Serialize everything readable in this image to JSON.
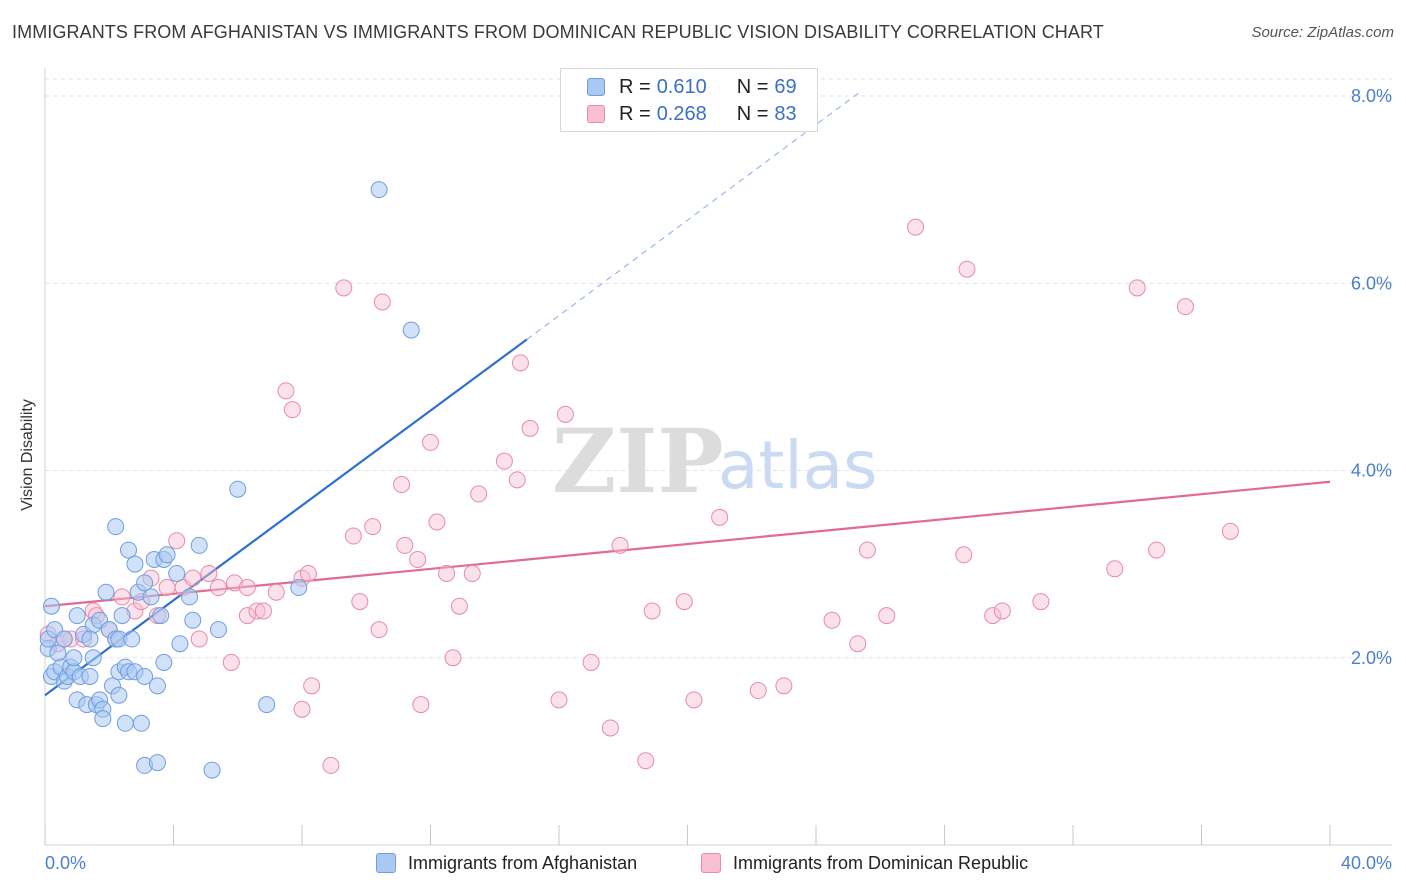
{
  "title": "IMMIGRANTS FROM AFGHANISTAN VS IMMIGRANTS FROM DOMINICAN REPUBLIC VISION DISABILITY CORRELATION CHART",
  "source": "Source: ZipAtlas.com",
  "watermark": {
    "zip": "ZIP",
    "atlas": "atlas"
  },
  "legend_top": [
    {
      "r_label": "R =",
      "r_value": "0.610",
      "n_label": "N =",
      "n_value": "69",
      "color": "#a9c8f2",
      "border": "#6f9ee0"
    },
    {
      "r_label": "R =",
      "r_value": "0.268",
      "n_label": "N =",
      "n_value": "83",
      "color": "#f7bfd1",
      "border": "#e88aa9"
    }
  ],
  "legend_bottom": [
    {
      "label": "Immigrants from Afghanistan",
      "color": "#a9c8f2",
      "border": "#6f9ee0"
    },
    {
      "label": "Immigrants from Dominican Republic",
      "color": "#f7bfd1",
      "border": "#e88aa9"
    }
  ],
  "chart_data": {
    "type": "scatter",
    "title": "IMMIGRANTS FROM AFGHANISTAN VS IMMIGRANTS FROM DOMINICAN REPUBLIC VISION DISABILITY CORRELATION CHART",
    "xlabel": "",
    "ylabel": "Vision Disability",
    "xlim": [
      0,
      40
    ],
    "ylim": [
      0,
      8.0
    ],
    "x_tick_labels": [
      "0.0%",
      "40.0%"
    ],
    "y_ticks": [
      2.0,
      4.0,
      6.0,
      8.0
    ],
    "y_tick_labels": [
      "2.0%",
      "4.0%",
      "6.0%",
      "8.0%"
    ],
    "grid": true,
    "colors": {
      "afghanistan": "#2f6fd0",
      "dominican": "#e26a95"
    },
    "series": [
      {
        "name": "Immigrants from Afghanistan",
        "trend": {
          "x": [
            0,
            15
          ],
          "y": [
            1.6,
            5.4
          ],
          "dashed_extension": {
            "x": [
              15,
              25.4
            ],
            "y": [
              5.4,
              8.05
            ]
          }
        },
        "points": [
          [
            0.1,
            2.1
          ],
          [
            0.2,
            2.55
          ],
          [
            0.2,
            1.8
          ],
          [
            0.3,
            1.85
          ],
          [
            0.4,
            2.05
          ],
          [
            0.5,
            1.9
          ],
          [
            0.6,
            1.75
          ],
          [
            0.7,
            1.8
          ],
          [
            0.8,
            1.9
          ],
          [
            0.9,
            1.85
          ],
          [
            1.0,
            1.55
          ],
          [
            1.0,
            2.45
          ],
          [
            1.1,
            1.8
          ],
          [
            1.2,
            2.25
          ],
          [
            1.3,
            1.5
          ],
          [
            1.4,
            1.8
          ],
          [
            1.5,
            2.35
          ],
          [
            1.5,
            2.0
          ],
          [
            1.6,
            1.5
          ],
          [
            1.7,
            1.55
          ],
          [
            1.7,
            2.4
          ],
          [
            1.8,
            1.45
          ],
          [
            1.8,
            1.35
          ],
          [
            1.9,
            2.7
          ],
          [
            2.0,
            2.3
          ],
          [
            2.1,
            1.7
          ],
          [
            2.2,
            2.2
          ],
          [
            2.3,
            2.2
          ],
          [
            2.3,
            1.85
          ],
          [
            2.4,
            2.45
          ],
          [
            2.3,
            1.6
          ],
          [
            2.2,
            3.4
          ],
          [
            2.5,
            1.9
          ],
          [
            2.5,
            1.3
          ],
          [
            2.6,
            1.85
          ],
          [
            2.6,
            3.15
          ],
          [
            2.7,
            2.2
          ],
          [
            2.8,
            1.85
          ],
          [
            2.8,
            3.0
          ],
          [
            2.9,
            2.7
          ],
          [
            3.0,
            1.3
          ],
          [
            3.1,
            1.8
          ],
          [
            3.1,
            2.8
          ],
          [
            3.1,
            0.85
          ],
          [
            3.3,
            2.65
          ],
          [
            3.4,
            3.05
          ],
          [
            3.5,
            0.88
          ],
          [
            3.5,
            1.7
          ],
          [
            3.6,
            2.45
          ],
          [
            3.7,
            3.05
          ],
          [
            3.7,
            1.95
          ],
          [
            3.8,
            3.1
          ],
          [
            4.1,
            2.9
          ],
          [
            4.2,
            2.15
          ],
          [
            4.5,
            2.65
          ],
          [
            4.6,
            2.4
          ],
          [
            4.8,
            3.2
          ],
          [
            5.2,
            0.8
          ],
          [
            5.4,
            2.3
          ],
          [
            6.0,
            3.8
          ],
          [
            6.9,
            1.5
          ],
          [
            7.9,
            2.75
          ],
          [
            10.4,
            7.0
          ],
          [
            11.4,
            5.5
          ],
          [
            0.1,
            2.2
          ],
          [
            0.3,
            2.3
          ],
          [
            0.6,
            2.2
          ],
          [
            1.4,
            2.2
          ],
          [
            0.9,
            2.0
          ]
        ]
      },
      {
        "name": "Immigrants from Dominican Republic",
        "trend": {
          "x": [
            0,
            40
          ],
          "y": [
            2.55,
            3.88
          ]
        },
        "points": [
          [
            0.1,
            2.25
          ],
          [
            0.4,
            2.15
          ],
          [
            0.8,
            2.2
          ],
          [
            1.2,
            2.2
          ],
          [
            1.5,
            2.5
          ],
          [
            1.6,
            2.45
          ],
          [
            2.0,
            2.3
          ],
          [
            2.2,
            2.2
          ],
          [
            2.4,
            2.65
          ],
          [
            2.8,
            2.5
          ],
          [
            3.0,
            2.6
          ],
          [
            3.3,
            2.85
          ],
          [
            3.5,
            2.45
          ],
          [
            3.8,
            2.75
          ],
          [
            4.1,
            3.25
          ],
          [
            4.3,
            2.75
          ],
          [
            4.6,
            2.85
          ],
          [
            4.8,
            2.2
          ],
          [
            5.1,
            2.9
          ],
          [
            5.4,
            2.75
          ],
          [
            5.8,
            1.95
          ],
          [
            5.9,
            2.8
          ],
          [
            6.3,
            2.75
          ],
          [
            6.3,
            2.45
          ],
          [
            6.6,
            2.5
          ],
          [
            6.8,
            2.5
          ],
          [
            7.2,
            2.7
          ],
          [
            7.5,
            4.85
          ],
          [
            7.7,
            4.65
          ],
          [
            8.0,
            2.85
          ],
          [
            8.2,
            2.9
          ],
          [
            8.0,
            1.45
          ],
          [
            8.3,
            1.7
          ],
          [
            8.9,
            0.85
          ],
          [
            9.3,
            5.95
          ],
          [
            9.6,
            3.3
          ],
          [
            9.8,
            2.6
          ],
          [
            10.2,
            3.4
          ],
          [
            10.4,
            2.3
          ],
          [
            10.5,
            5.8
          ],
          [
            11.1,
            3.85
          ],
          [
            11.2,
            3.2
          ],
          [
            11.6,
            3.05
          ],
          [
            11.7,
            1.5
          ],
          [
            12.0,
            4.3
          ],
          [
            12.2,
            3.45
          ],
          [
            12.5,
            2.9
          ],
          [
            12.7,
            2.0
          ],
          [
            12.9,
            2.55
          ],
          [
            13.3,
            2.9
          ],
          [
            13.5,
            3.75
          ],
          [
            14.3,
            4.1
          ],
          [
            14.7,
            3.9
          ],
          [
            14.8,
            5.15
          ],
          [
            15.1,
            4.45
          ],
          [
            16.0,
            1.55
          ],
          [
            16.2,
            4.6
          ],
          [
            17.0,
            1.95
          ],
          [
            17.6,
            1.25
          ],
          [
            17.9,
            3.2
          ],
          [
            18.7,
            0.9
          ],
          [
            18.9,
            2.5
          ],
          [
            19.9,
            2.6
          ],
          [
            20.2,
            1.55
          ],
          [
            21.0,
            3.5
          ],
          [
            22.2,
            1.65
          ],
          [
            23.0,
            1.7
          ],
          [
            24.5,
            2.4
          ],
          [
            25.3,
            2.15
          ],
          [
            25.6,
            3.15
          ],
          [
            26.2,
            2.45
          ],
          [
            27.1,
            6.6
          ],
          [
            28.6,
            3.1
          ],
          [
            28.7,
            6.15
          ],
          [
            29.5,
            2.45
          ],
          [
            29.8,
            2.5
          ],
          [
            31.0,
            2.6
          ],
          [
            33.3,
            2.95
          ],
          [
            34.0,
            5.95
          ],
          [
            34.6,
            3.15
          ],
          [
            35.5,
            5.75
          ],
          [
            36.9,
            3.35
          ],
          [
            0.6,
            2.2
          ]
        ]
      }
    ]
  }
}
